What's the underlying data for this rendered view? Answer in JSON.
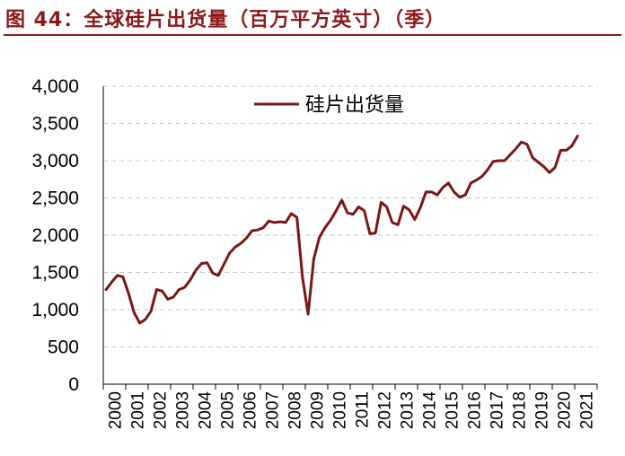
{
  "figure": {
    "title": "图 44：全球硅片出货量（百万平方英寸）（季）"
  },
  "colors": {
    "accent": "#8b1a1a",
    "series": "#7b1616",
    "grid": "#c8c8c8",
    "axis": "#000000"
  },
  "chart_data": {
    "type": "line",
    "title": "",
    "xlabel": "",
    "ylabel": "",
    "ylim": [
      0,
      4000
    ],
    "yticks": [
      0,
      500,
      1000,
      1500,
      2000,
      2500,
      3000,
      3500,
      4000
    ],
    "y_tick_labels": [
      "0",
      "500",
      "1,000",
      "1,500",
      "2,000",
      "2,500",
      "3,000",
      "3,500",
      "4,000"
    ],
    "x_labels": [
      "2000",
      "2001",
      "2002",
      "2003",
      "2004",
      "2005",
      "2006",
      "2007",
      "2008",
      "2009",
      "2010",
      "2011",
      "2012",
      "2013",
      "2014",
      "2015",
      "2016",
      "2017",
      "2018",
      "2019",
      "2020",
      "2021"
    ],
    "grid": "horizontal dashed",
    "legend": "top-center",
    "series": [
      {
        "name": "硅片出货量",
        "values": [
          1270,
          1370,
          1460,
          1440,
          1220,
          960,
          820,
          870,
          980,
          1270,
          1250,
          1140,
          1170,
          1270,
          1300,
          1400,
          1530,
          1620,
          1630,
          1490,
          1460,
          1610,
          1760,
          1840,
          1890,
          1960,
          2060,
          2070,
          2100,
          2190,
          2170,
          2180,
          2170,
          2290,
          2240,
          1430,
          940,
          1680,
          1970,
          2100,
          2200,
          2330,
          2470,
          2300,
          2280,
          2380,
          2330,
          2020,
          2030,
          2440,
          2380,
          2170,
          2140,
          2390,
          2340,
          2210,
          2370,
          2580,
          2580,
          2540,
          2640,
          2700,
          2580,
          2510,
          2540,
          2700,
          2740,
          2790,
          2880,
          2990,
          3000,
          3000,
          3080,
          3160,
          3250,
          3220,
          3040,
          2980,
          2920,
          2840,
          2910,
          3140,
          3140,
          3200,
          3330
        ]
      }
    ]
  }
}
